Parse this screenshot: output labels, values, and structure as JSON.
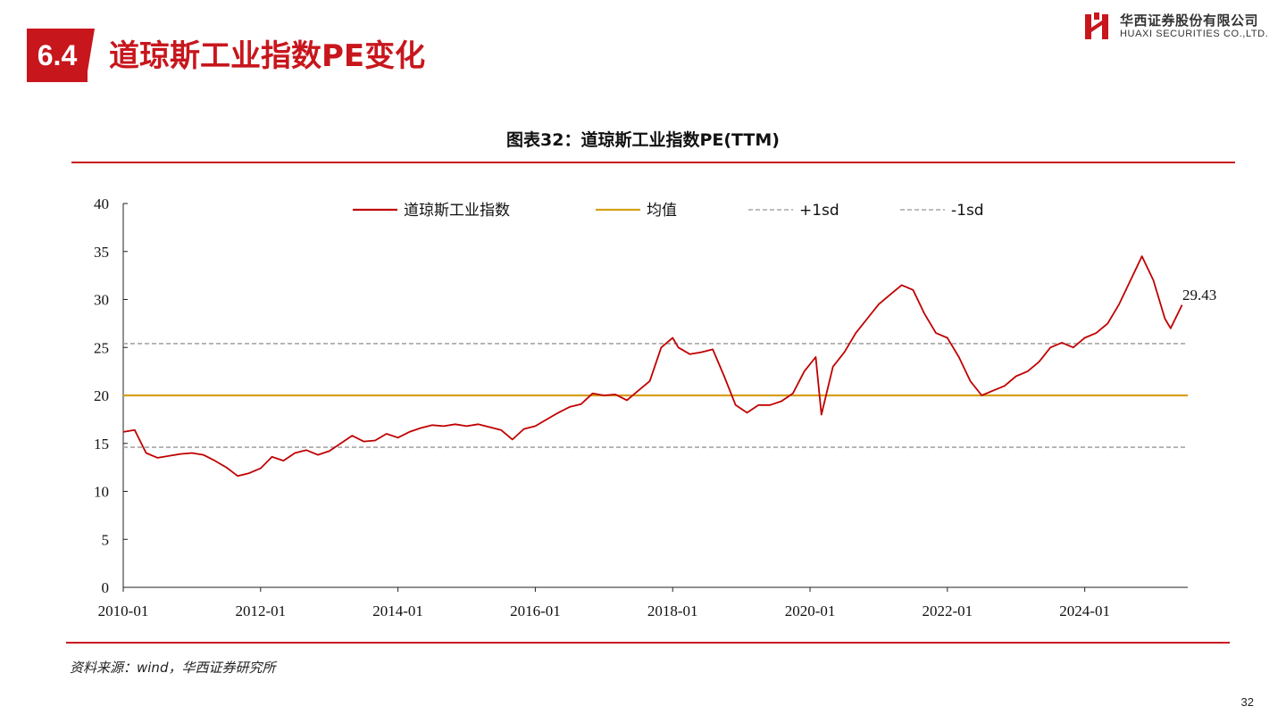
{
  "header": {
    "section_number": "6.4",
    "section_title": "道琼斯工业指数PE变化",
    "logo_cn": "华西证券股份有限公司",
    "logo_en": "HUAXI SECURITIES CO.,LTD."
  },
  "footer": {
    "source": "资料来源：wind，华西证券研究所",
    "page_number": "32"
  },
  "colors": {
    "accent": "#c8161d",
    "series_main": "#c00000",
    "mean_line": "#d4a017",
    "sd_line": "#a6a6a6"
  },
  "chart_data": {
    "type": "line",
    "title": "图表32：道琼斯工业指数PE(TTM)",
    "xlabel": "",
    "ylabel": "",
    "ylim": [
      0,
      40
    ],
    "yticks": [
      0,
      5,
      10,
      15,
      20,
      25,
      30,
      35,
      40
    ],
    "xlim": [
      "2010-01",
      "2025-07"
    ],
    "xticks": [
      "2010-01",
      "2012-01",
      "2014-01",
      "2016-01",
      "2018-01",
      "2020-01",
      "2022-01",
      "2024-01"
    ],
    "grid": false,
    "legend_position": "top",
    "last_value_label": "29.43",
    "series": [
      {
        "name": "道琼斯工业指数",
        "style": "solid",
        "x": [
          "2010-01",
          "2010-03",
          "2010-05",
          "2010-07",
          "2010-09",
          "2010-11",
          "2011-01",
          "2011-03",
          "2011-05",
          "2011-07",
          "2011-09",
          "2011-11",
          "2012-01",
          "2012-03",
          "2012-05",
          "2012-07",
          "2012-09",
          "2012-11",
          "2013-01",
          "2013-03",
          "2013-05",
          "2013-07",
          "2013-09",
          "2013-11",
          "2014-01",
          "2014-03",
          "2014-05",
          "2014-07",
          "2014-09",
          "2014-11",
          "2015-01",
          "2015-03",
          "2015-05",
          "2015-07",
          "2015-09",
          "2015-11",
          "2016-01",
          "2016-03",
          "2016-05",
          "2016-07",
          "2016-09",
          "2016-11",
          "2017-01",
          "2017-03",
          "2017-05",
          "2017-07",
          "2017-09",
          "2017-11",
          "2018-01",
          "2018-02",
          "2018-04",
          "2018-06",
          "2018-08",
          "2018-10",
          "2018-12",
          "2019-02",
          "2019-04",
          "2019-06",
          "2019-08",
          "2019-10",
          "2019-12",
          "2020-02",
          "2020-03",
          "2020-05",
          "2020-07",
          "2020-09",
          "2020-11",
          "2021-01",
          "2021-03",
          "2021-05",
          "2021-07",
          "2021-09",
          "2021-11",
          "2022-01",
          "2022-03",
          "2022-05",
          "2022-07",
          "2022-09",
          "2022-11",
          "2023-01",
          "2023-03",
          "2023-05",
          "2023-07",
          "2023-09",
          "2023-11",
          "2024-01",
          "2024-03",
          "2024-05",
          "2024-07",
          "2024-09",
          "2024-11",
          "2025-01",
          "2025-03",
          "2025-04",
          "2025-06"
        ],
        "values": [
          16.2,
          16.4,
          14.0,
          13.5,
          13.7,
          13.9,
          14.0,
          13.8,
          13.2,
          12.5,
          11.6,
          11.9,
          12.4,
          13.6,
          13.2,
          14.0,
          14.3,
          13.8,
          14.2,
          15.0,
          15.8,
          15.2,
          15.3,
          16.0,
          15.6,
          16.2,
          16.6,
          16.9,
          16.8,
          17.0,
          16.8,
          17.0,
          16.7,
          16.4,
          15.4,
          16.5,
          16.8,
          17.5,
          18.2,
          18.8,
          19.1,
          20.2,
          20.0,
          20.1,
          19.5,
          20.5,
          21.5,
          25.0,
          26.0,
          25.0,
          24.3,
          24.5,
          24.8,
          22.0,
          19.0,
          18.2,
          19.0,
          19.0,
          19.4,
          20.2,
          22.5,
          24.0,
          18.0,
          23.0,
          24.5,
          26.5,
          28.0,
          29.5,
          30.5,
          31.5,
          31.0,
          28.5,
          26.5,
          26.0,
          24.0,
          21.5,
          20.0,
          20.5,
          21.0,
          22.0,
          22.5,
          23.5,
          25.0,
          25.5,
          25.0,
          26.0,
          26.5,
          27.5,
          29.5,
          32.0,
          34.5,
          32.0,
          28.0,
          27.0,
          29.43
        ]
      },
      {
        "name": "均值",
        "style": "solid",
        "values": [
          20.0
        ]
      },
      {
        "name": "+1sd",
        "style": "dashed",
        "values": [
          25.4
        ]
      },
      {
        "name": "-1sd",
        "style": "dashed",
        "values": [
          14.6
        ]
      }
    ]
  }
}
